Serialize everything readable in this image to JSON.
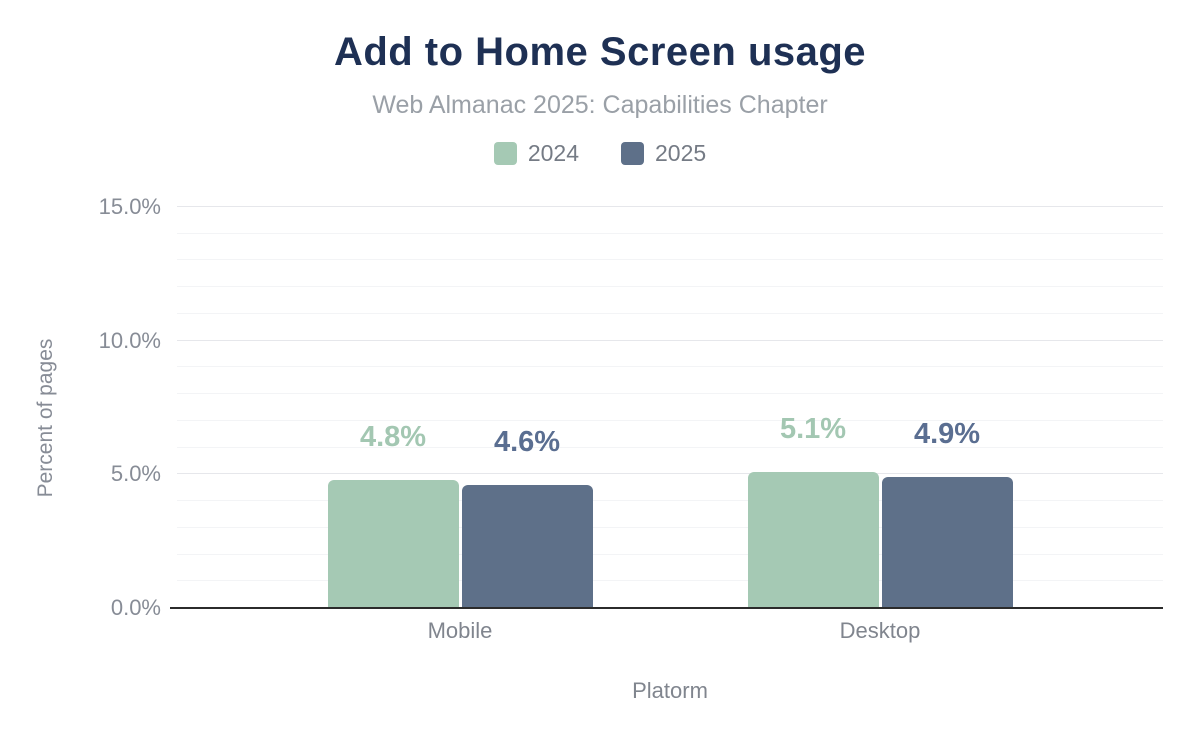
{
  "chart_data": {
    "type": "bar",
    "title": "Add to Home Screen usage",
    "subtitle": "Web Almanac 2025: Capabilities Chapter",
    "categories": [
      "Mobile",
      "Desktop"
    ],
    "series": [
      {
        "name": "2024",
        "color": "#a5c9b4",
        "label_color": "#a3c7b2",
        "values": [
          4.8,
          5.1
        ],
        "labels": [
          "4.8%",
          "5.1%"
        ]
      },
      {
        "name": "2025",
        "color": "#5e7089",
        "label_color": "#5a6e91",
        "values": [
          4.6,
          4.9
        ],
        "labels": [
          "4.6%",
          "4.9%"
        ]
      }
    ],
    "xlabel": "Platorm",
    "ylabel": "Percent of pages",
    "ylim": [
      0,
      15
    ],
    "yticks_major": [
      0,
      5,
      10,
      15
    ],
    "ytick_labels": [
      "0.0%",
      "5.0%",
      "10.0%",
      "15.0%"
    ],
    "ytick_minor_step": 1,
    "grid": "horizontal",
    "legend_position": "top",
    "axis_line_color": "#2b2b2b",
    "title_color": "#1e3054",
    "subtitle_color": "#9aa0a7"
  }
}
